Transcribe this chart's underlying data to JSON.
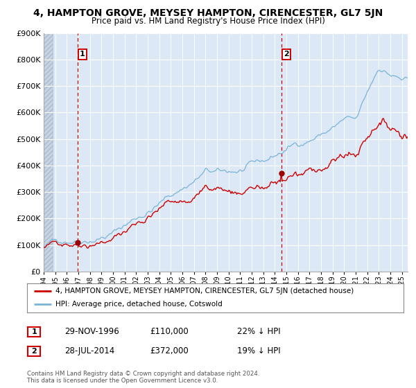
{
  "title": "4, HAMPTON GROVE, MEYSEY HAMPTON, CIRENCESTER, GL7 5JN",
  "subtitle": "Price paid vs. HM Land Registry's House Price Index (HPI)",
  "legend_line1": "4, HAMPTON GROVE, MEYSEY HAMPTON, CIRENCESTER, GL7 5JN (detached house)",
  "legend_line2": "HPI: Average price, detached house, Cotswold",
  "transaction1_date": "29-NOV-1996",
  "transaction1_price": 110000,
  "transaction1_note": "22% ↓ HPI",
  "transaction2_date": "28-JUL-2014",
  "transaction2_price": 372000,
  "transaction2_note": "19% ↓ HPI",
  "copyright": "Contains HM Land Registry data © Crown copyright and database right 2024.\nThis data is licensed under the Open Government Licence v3.0.",
  "hpi_color": "#7ab4d8",
  "price_color": "#cc0000",
  "dot_color": "#990000",
  "vline_color": "#cc0000",
  "bg_color": "#dce8f5",
  "hatch_color": "#c4d0e0",
  "grid_color": "#ffffff",
  "ylim": [
    0,
    900000
  ],
  "xlim_start": 1994.0,
  "xlim_end": 2025.5,
  "transaction1_x": 1996.92,
  "transaction2_x": 2014.56
}
